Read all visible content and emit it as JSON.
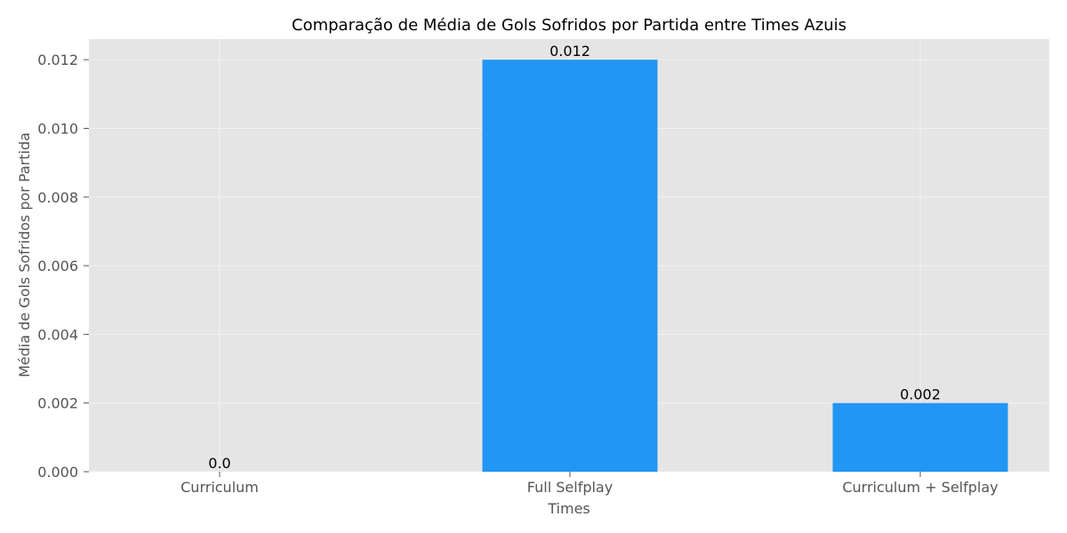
{
  "chart_data": {
    "type": "bar",
    "title": "Comparação de Média de Gols Sofridos por Partida entre Times Azuis",
    "xlabel": "Times",
    "ylabel": "Média de Gols Sofridos por Partida",
    "categories": [
      "Curriculum",
      "Full Selfplay",
      "Curriculum + Selfplay"
    ],
    "values": [
      0.0,
      0.012,
      0.002
    ],
    "value_labels": [
      "0.0",
      "0.012",
      "0.002"
    ],
    "ylim": [
      0,
      0.0126
    ],
    "yticks": [
      0.0,
      0.002,
      0.004,
      0.006,
      0.008,
      0.01,
      0.012
    ],
    "ytick_labels": [
      "0.000",
      "0.002",
      "0.004",
      "0.006",
      "0.008",
      "0.010",
      "0.012"
    ],
    "grid": true,
    "legend": false,
    "bar_color": "#2196F3",
    "plot_background": "#E5E5E5"
  }
}
